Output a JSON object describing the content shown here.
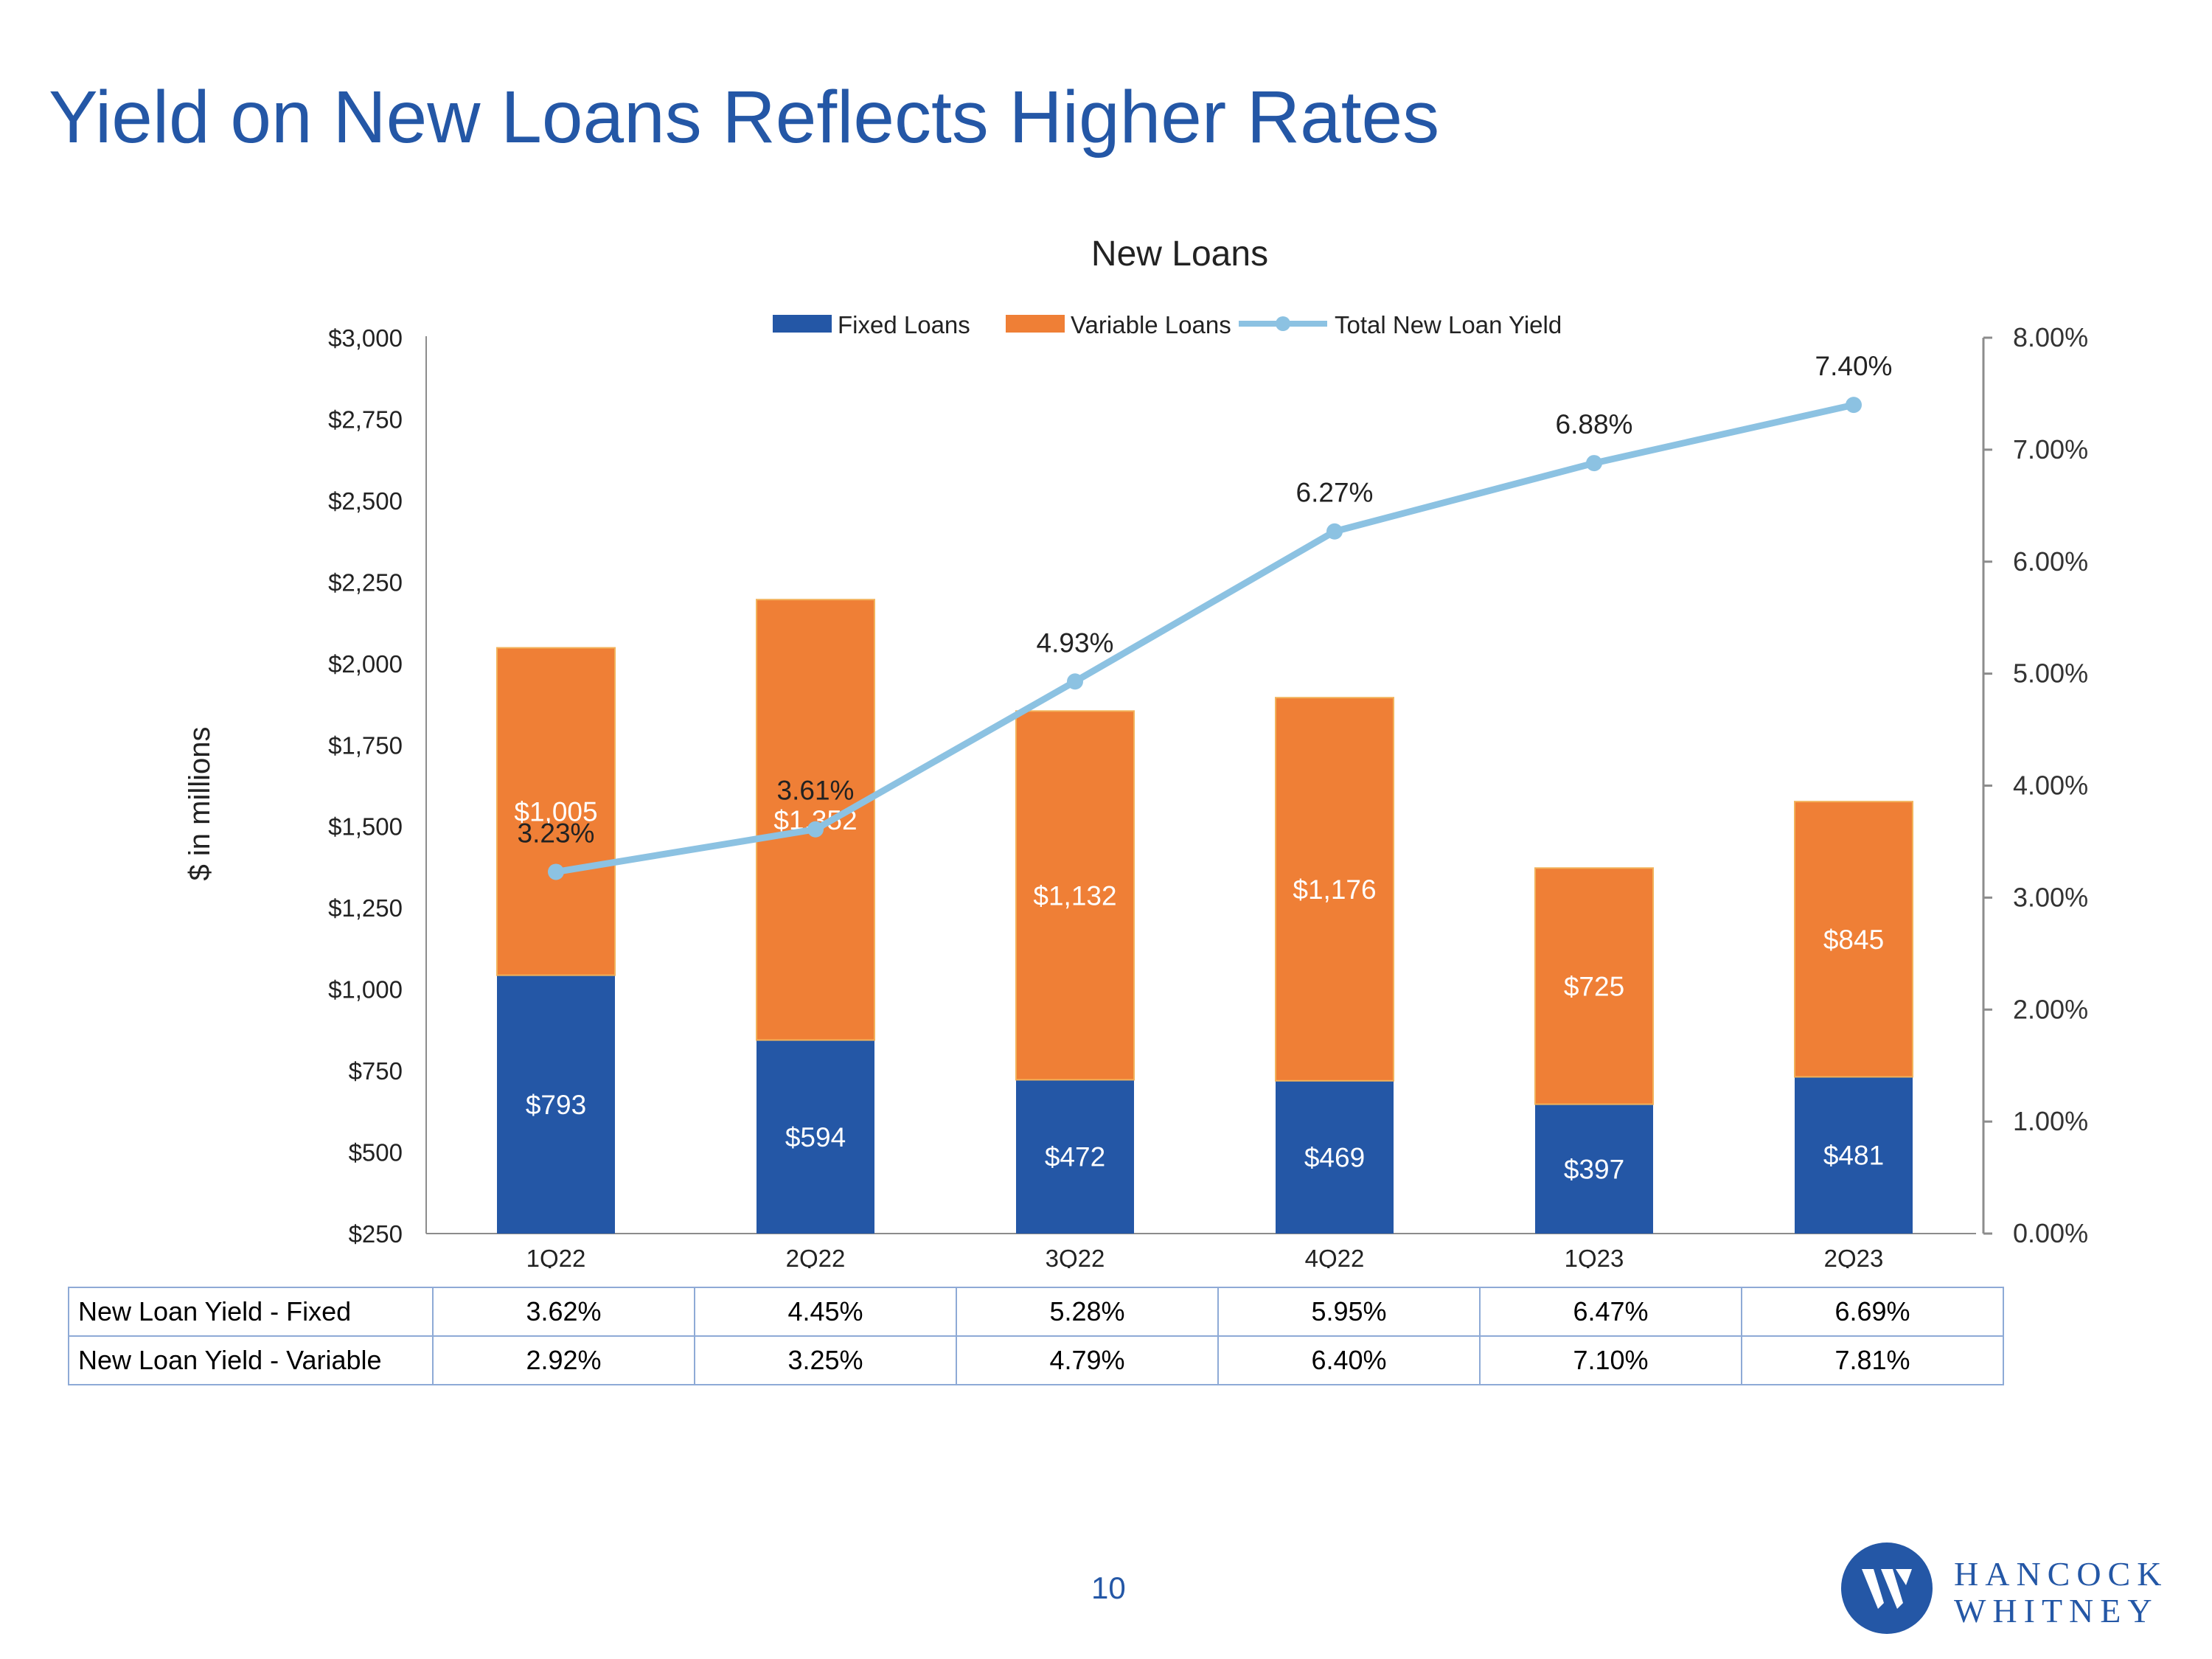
{
  "page": {
    "title": "Yield on New Loans Reflects Higher Rates",
    "page_number": "10",
    "brand": {
      "line1": "HANCOCK",
      "line2": "WHITNEY"
    }
  },
  "colors": {
    "title": "#2457a6",
    "fixed": "#2457a6",
    "variable": "#ef7f36",
    "yield_line": "#8cc2e2",
    "axis": "#8c8c8c",
    "table_border": "#8eaad6"
  },
  "chart_data": {
    "type": "bar",
    "stacked": true,
    "title": "New Loans",
    "ylabel": "$ in millions",
    "ylim": [
      250,
      3000
    ],
    "y_ticks": [
      "$250",
      "$500",
      "$750",
      "$1,000",
      "$1,250",
      "$1,500",
      "$1,750",
      "$2,000",
      "$2,250",
      "$2,500",
      "$2,750",
      "$3,000"
    ],
    "y2lim": [
      0,
      8
    ],
    "y2_ticks": [
      "0.00%",
      "1.00%",
      "2.00%",
      "3.00%",
      "4.00%",
      "5.00%",
      "6.00%",
      "7.00%",
      "8.00%"
    ],
    "categories": [
      "1Q22",
      "2Q22",
      "3Q22",
      "4Q22",
      "1Q23",
      "2Q23"
    ],
    "series": [
      {
        "name": "Fixed Loans",
        "type": "bar",
        "values": [
          793,
          594,
          472,
          469,
          397,
          481
        ],
        "labels": [
          "$793",
          "$594",
          "$472",
          "$469",
          "$397",
          "$481"
        ]
      },
      {
        "name": "Variable Loans",
        "type": "bar",
        "values": [
          1005,
          1352,
          1132,
          1176,
          725,
          845
        ],
        "labels": [
          "$1,005",
          "$1,352",
          "$1,132",
          "$1,176",
          "$725",
          "$845"
        ]
      },
      {
        "name": "Total New Loan Yield",
        "type": "line",
        "axis": "secondary",
        "values": [
          3.23,
          3.61,
          4.93,
          6.27,
          6.88,
          7.4
        ],
        "labels": [
          "3.23%",
          "3.61%",
          "4.93%",
          "6.27%",
          "6.88%",
          "7.40%"
        ]
      }
    ],
    "legend_position": "top",
    "table": {
      "rows": [
        {
          "label": "New Loan Yield - Fixed",
          "values": [
            "3.62%",
            "4.45%",
            "5.28%",
            "5.95%",
            "6.47%",
            "6.69%"
          ]
        },
        {
          "label": "New Loan Yield - Variable",
          "values": [
            "2.92%",
            "3.25%",
            "4.79%",
            "6.40%",
            "7.10%",
            "7.81%"
          ]
        }
      ]
    }
  }
}
